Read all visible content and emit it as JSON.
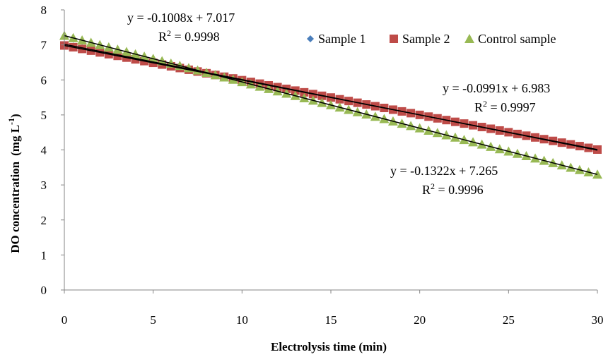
{
  "chart_data": {
    "type": "scatter",
    "xlabel": "Electrolysis time (min)",
    "ylabel": "DO concentration",
    "ylabel_unit": "(mg L",
    "ylabel_exp": "-1",
    "ylabel_close": ")",
    "xlim": [
      0,
      30
    ],
    "ylim": [
      0,
      8
    ],
    "xticks": [
      "0",
      "5",
      "10",
      "15",
      "20",
      "25",
      "30"
    ],
    "yticks": [
      "0",
      "1",
      "2",
      "3",
      "4",
      "5",
      "6",
      "7",
      "8"
    ],
    "grid": false,
    "legend_position": "top-right",
    "colors": {
      "sample1": "#4a7ebb",
      "sample2": "#be4b48",
      "control": "#98b954",
      "trendline": "#000000"
    },
    "series": [
      {
        "name": "Sample 1",
        "marker": "diamond",
        "color_key": "sample1",
        "x_start": 0,
        "x_end": 30,
        "x_step": 0.5,
        "slope": -0.1008,
        "intercept": 7.017
      },
      {
        "name": "Sample 2",
        "marker": "square",
        "color_key": "sample2",
        "x_start": 0,
        "x_end": 30,
        "x_step": 0.5,
        "slope": -0.0991,
        "intercept": 6.983
      },
      {
        "name": "Control sample",
        "marker": "triangle",
        "color_key": "control",
        "x_start": 0,
        "x_end": 30,
        "x_step": 0.5,
        "slope": -0.1322,
        "intercept": 7.265
      }
    ],
    "trendlines": [
      {
        "eq": "y = -0.1008x + 7.017",
        "r2_label": "R",
        "r2_exp": "2",
        "r2_value": " = 0.9998"
      },
      {
        "eq": "y = -0.0991x + 6.983",
        "r2_label": "R",
        "r2_exp": "2",
        "r2_value": " = 0.9997"
      },
      {
        "eq": "y = -0.1322x + 7.265",
        "r2_label": "R",
        "r2_exp": "2",
        "r2_value": " = 0.9996"
      }
    ]
  }
}
